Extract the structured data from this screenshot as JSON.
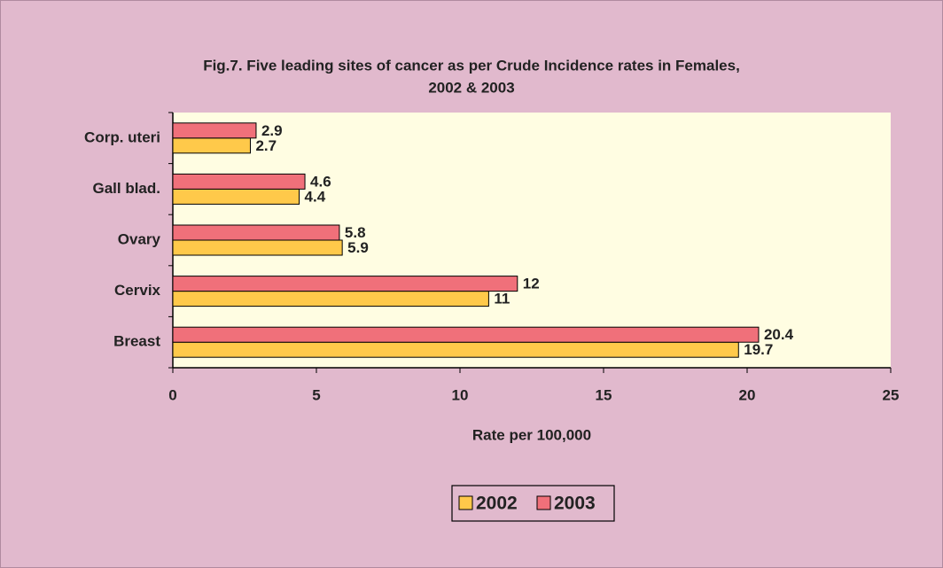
{
  "chart_data": {
    "type": "bar",
    "orientation": "horizontal",
    "title": [
      "Fig.7. Five leading sites of cancer as per Crude Incidence rates  in Females,",
      "2002 & 2003"
    ],
    "x_label": "Rate per 100,000",
    "categories": [
      "Corp. uteri",
      "Gall blad.",
      "Ovary",
      "Cervix",
      "Breast"
    ],
    "series": [
      {
        "name": "2002",
        "color": "#ffc94a",
        "values": [
          2.7,
          4.4,
          5.9,
          11,
          19.7
        ]
      },
      {
        "name": "2003",
        "color": "#f0707a",
        "values": [
          2.9,
          4.6,
          5.8,
          12,
          20.4
        ]
      }
    ],
    "xlim": [
      0,
      25
    ],
    "xticks": [
      0,
      5,
      10,
      15,
      20,
      25
    ],
    "legend": "bottom",
    "plot_background": "#fffde2"
  }
}
